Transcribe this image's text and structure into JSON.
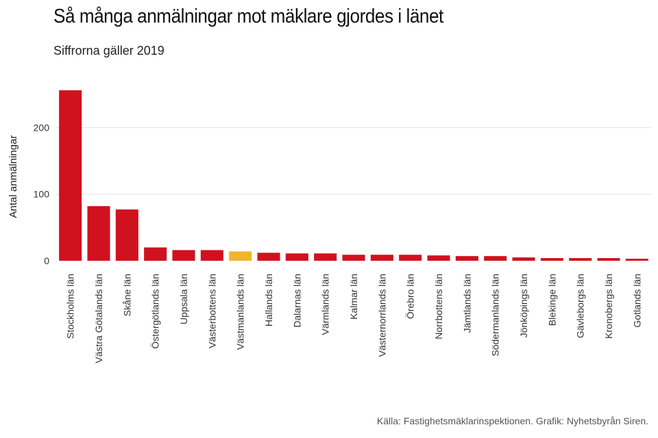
{
  "title": "Så många anmälningar mot mäklare gjordes i länet",
  "subtitle": "Siffrorna gäller 2019",
  "source": "Källa: Fastighetsmäklarinspektionen. Grafik: Nyhetsbyrån Siren.",
  "colors": {
    "default": "#D0121F",
    "highlight": "#F2B52A",
    "grid": "#E3E3E3"
  },
  "chart_data": {
    "type": "bar",
    "title": "Så många anmälningar mot mäklare gjordes i länet",
    "subtitle": "Siffrorna gäller 2019",
    "xlabel": "",
    "ylabel": "Antal anmälningar",
    "ylim": [
      0,
      260
    ],
    "yticks": [
      0,
      100,
      200
    ],
    "grid": true,
    "highlight_category": "Västmanlands län",
    "categories": [
      "Stockholms län",
      "Västra Götalands län",
      "Skåne län",
      "Östergötlands län",
      "Uppsala län",
      "Västerbottens län",
      "Västmanlands län",
      "Hallands län",
      "Dalarnas län",
      "Värmlands län",
      "Kalmar län",
      "Västernorrlands län",
      "Örebro län",
      "Norrbottens län",
      "Jämtlands län",
      "Södermanlands län",
      "Jönköpings län",
      "Blekinge län",
      "Gävleborgs län",
      "Kronobergs län",
      "Gotlands län"
    ],
    "values": [
      256,
      82,
      77,
      20,
      16,
      16,
      14,
      12,
      11,
      11,
      9,
      9,
      9,
      8,
      7,
      7,
      5,
      4,
      4,
      4,
      3
    ]
  }
}
